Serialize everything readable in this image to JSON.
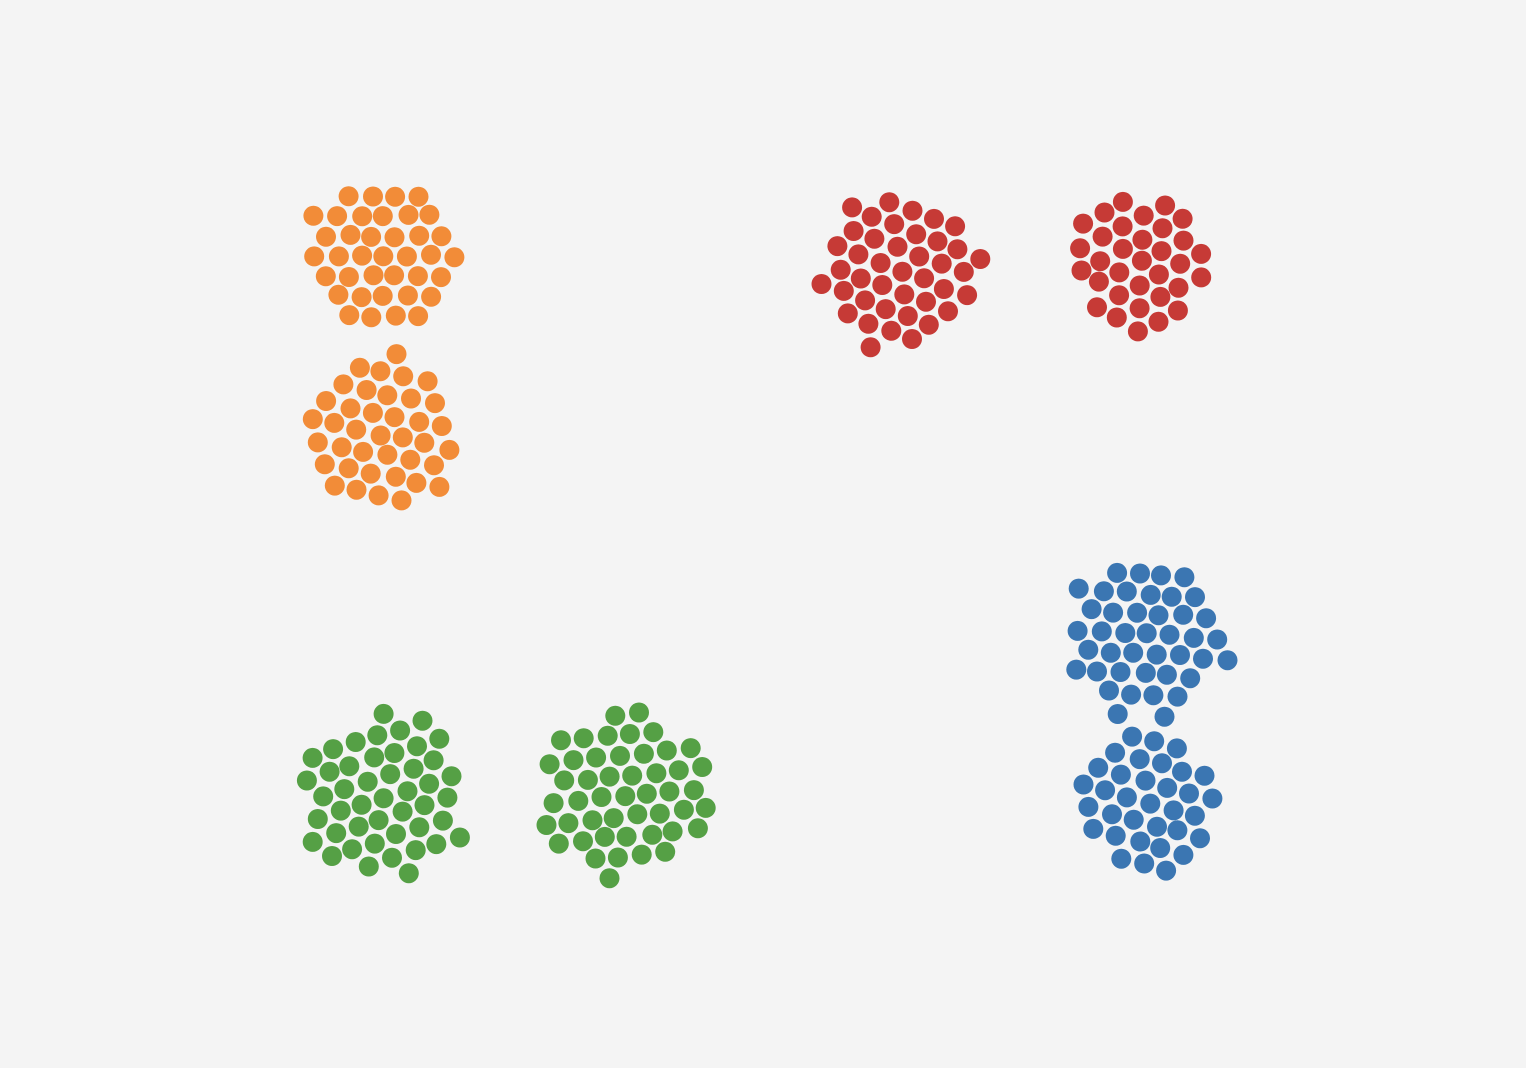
{
  "chart_data": {
    "type": "scatter",
    "title": "",
    "xlabel": "",
    "ylabel": "",
    "grid": false,
    "legend": "none",
    "dot_style": "packed-circles",
    "groups": [
      {
        "category": "orange",
        "color": "#F28C38",
        "clusters": [
          {
            "count": 38
          },
          {
            "count": 39
          }
        ]
      },
      {
        "category": "red",
        "color": "#C63A36",
        "clusters": [
          {
            "count": 41
          },
          {
            "count": 33
          }
        ]
      },
      {
        "category": "green",
        "color": "#55A045",
        "clusters": [
          {
            "count": 46
          },
          {
            "count": 48
          }
        ]
      },
      {
        "category": "blue",
        "color": "#3B76B2",
        "clusters": [
          {
            "count": 42
          },
          {
            "count": 34
          }
        ]
      }
    ]
  }
}
